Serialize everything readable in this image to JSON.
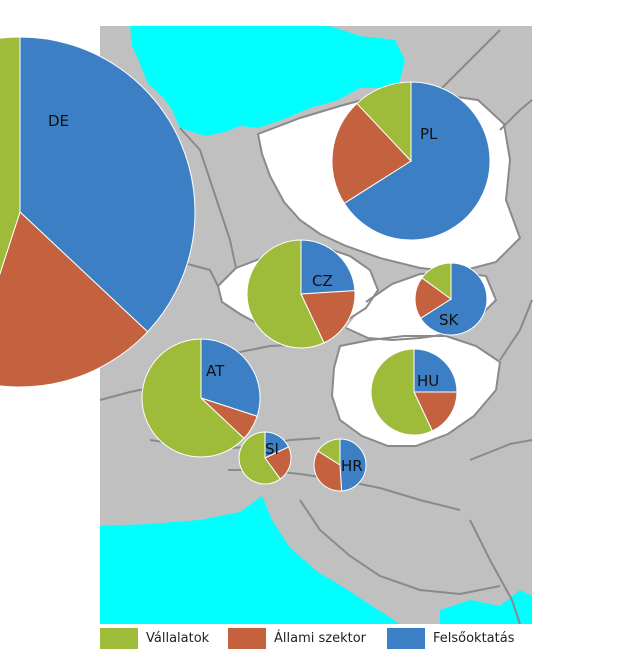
{
  "colors": {
    "vallalatok": "#9ebc3a",
    "allami": "#c4613f",
    "felsooktatas": "#3d7fc4",
    "sea": "#00ffff",
    "land": "#c0c0c0",
    "border": "#8a8a8a",
    "highlight_region": "#ffffff"
  },
  "legend": [
    {
      "key": "vallalatok",
      "label": "Vállalatok"
    },
    {
      "key": "allami",
      "label": "Állami szektor"
    },
    {
      "key": "felsooktatas",
      "label": "Felsőoktatás"
    }
  ],
  "chart_data": {
    "type": "pie",
    "categories": [
      "Vállalatok",
      "Állami szektor",
      "Felsőoktatás"
    ],
    "pies": [
      {
        "country": "DE",
        "shares": [
          0.45,
          0.18,
          0.37
        ]
      },
      {
        "country": "PL",
        "shares": [
          0.12,
          0.22,
          0.66
        ]
      },
      {
        "country": "CZ",
        "shares": [
          0.57,
          0.19,
          0.24
        ]
      },
      {
        "country": "SK",
        "shares": [
          0.15,
          0.19,
          0.66
        ]
      },
      {
        "country": "AT",
        "shares": [
          0.63,
          0.07,
          0.3
        ]
      },
      {
        "country": "HU",
        "shares": [
          0.57,
          0.18,
          0.25
        ]
      },
      {
        "country": "SI",
        "shares": [
          0.6,
          0.22,
          0.18
        ]
      },
      {
        "country": "HR",
        "shares": [
          0.16,
          0.35,
          0.49
        ]
      }
    ]
  }
}
